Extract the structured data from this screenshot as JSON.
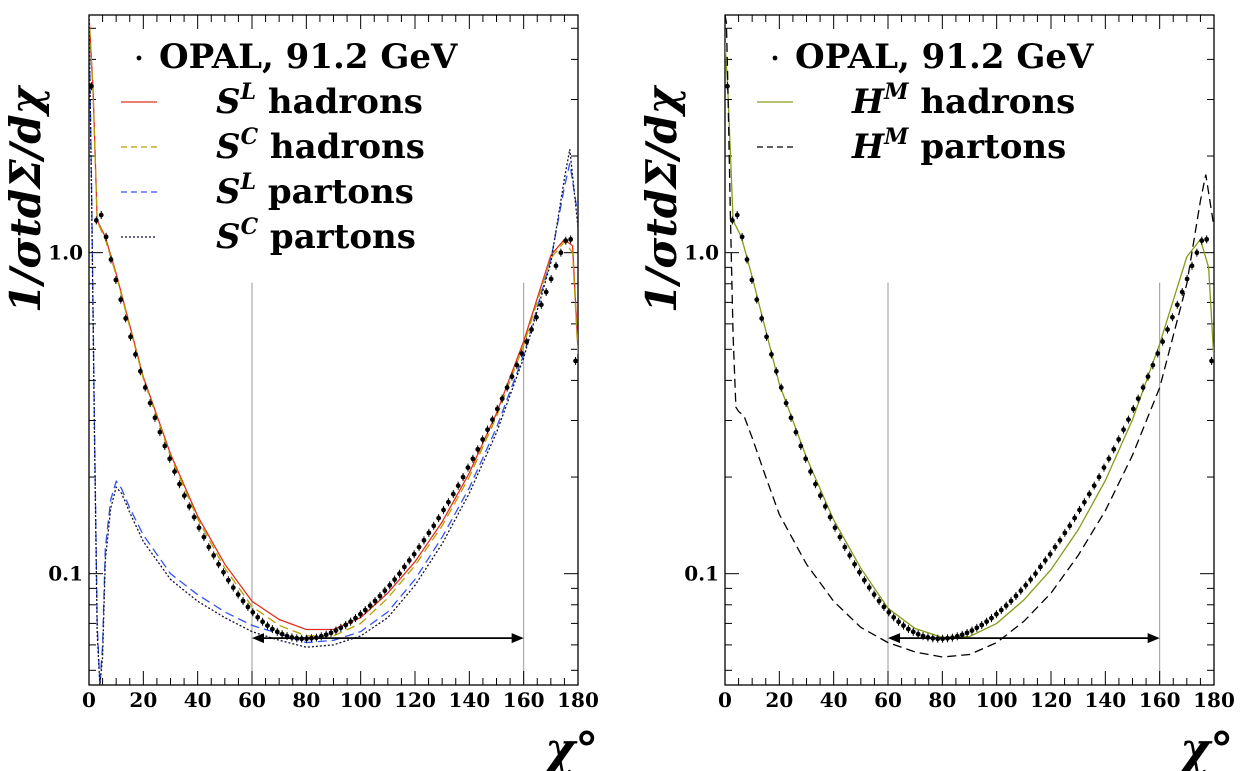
{
  "chart_data": [
    {
      "type": "line",
      "panel": "left",
      "xlabel": "χ°",
      "ylabel": "1/σtdΣ/dχ",
      "xlim": [
        0,
        180
      ],
      "ylim": [
        0.045,
        5.5
      ],
      "yscale": "log",
      "x_ticks": [
        0,
        20,
        40,
        60,
        80,
        100,
        120,
        140,
        160,
        180
      ],
      "y_tick_labels": [
        {
          "value": 0.1,
          "label": "0.1"
        },
        {
          "value": 1.0,
          "label": "1.0"
        }
      ],
      "vertical_lines": [
        60,
        160
      ],
      "fit_range_arrow": [
        60,
        160
      ],
      "arrow_y": 0.063,
      "legend_placement": "top",
      "legend": [
        {
          "label": "OPAL, 91.2 GeV",
          "style": "points",
          "color": "#000000"
        },
        {
          "label": "S",
          "sup": "L",
          "rest": " hadrons",
          "style": "solid",
          "color": "#e0301e"
        },
        {
          "label": "S",
          "sup": "C",
          "rest": " hadrons",
          "style": "dashed",
          "color": "#b8a000"
        },
        {
          "label": "S",
          "sup": "L",
          "rest": " partons",
          "style": "dashed",
          "color": "#3355ee"
        },
        {
          "label": "S",
          "sup": "C",
          "rest": " partons",
          "style": "dotted",
          "color": "#111133"
        }
      ],
      "data_series": {
        "name": "OPAL, 91.2 GeV",
        "x": [
          0.9,
          2.7,
          4.5,
          6.3,
          8.1,
          9.9,
          11.7,
          13.5,
          15.3,
          17.1,
          18.9,
          20.7,
          22.5,
          24.3,
          26.1,
          27.9,
          29.7,
          31.5,
          33.3,
          35.1,
          36.9,
          38.7,
          40.5,
          42.3,
          44.1,
          45.9,
          47.7,
          49.5,
          51.3,
          53.1,
          54.9,
          56.7,
          58.5,
          60.3,
          62.1,
          63.9,
          65.7,
          67.5,
          69.3,
          71.1,
          72.9,
          74.7,
          76.5,
          78.3,
          80.1,
          81.9,
          83.7,
          85.5,
          87.3,
          89.1,
          90.9,
          92.7,
          94.5,
          96.3,
          98.1,
          99.9,
          101.7,
          103.5,
          105.3,
          107.1,
          108.9,
          110.7,
          112.5,
          114.3,
          116.1,
          117.9,
          119.7,
          121.5,
          123.3,
          125.1,
          126.9,
          128.7,
          130.5,
          132.3,
          134.1,
          135.9,
          137.7,
          139.5,
          141.3,
          143.1,
          144.9,
          146.7,
          148.5,
          150.3,
          152.1,
          153.9,
          155.7,
          157.5,
          159.3,
          161.1,
          162.9,
          164.7,
          166.5,
          168.3,
          170.1,
          171.9,
          173.7,
          175.5,
          177.3,
          179.1
        ],
        "y": [
          3.3,
          1.26,
          1.31,
          1.12,
          0.952,
          0.822,
          0.714,
          0.624,
          0.547,
          0.482,
          0.427,
          0.38,
          0.34,
          0.306,
          0.276,
          0.25,
          0.228,
          0.208,
          0.19,
          0.175,
          0.162,
          0.15,
          0.139,
          0.13,
          0.121,
          0.114,
          0.107,
          0.101,
          0.0954,
          0.0905,
          0.0861,
          0.0822,
          0.0788,
          0.0758,
          0.0731,
          0.0708,
          0.0689,
          0.0672,
          0.0659,
          0.0648,
          0.0639,
          0.0633,
          0.0629,
          0.0627,
          0.0627,
          0.0629,
          0.0632,
          0.0638,
          0.0645,
          0.0654,
          0.0665,
          0.0678,
          0.0692,
          0.0709,
          0.0727,
          0.0748,
          0.077,
          0.0795,
          0.0822,
          0.0852,
          0.0885,
          0.092,
          0.0959,
          0.1,
          0.105,
          0.11,
          0.115,
          0.121,
          0.127,
          0.134,
          0.141,
          0.149,
          0.158,
          0.167,
          0.177,
          0.188,
          0.2,
          0.214,
          0.228,
          0.244,
          0.262,
          0.281,
          0.302,
          0.326,
          0.351,
          0.38,
          0.411,
          0.446,
          0.485,
          0.528,
          0.576,
          0.629,
          0.688,
          0.754,
          0.828,
          0.91,
          1.0,
          1.09,
          1.1,
          0.46
        ]
      },
      "curves": [
        {
          "name": "S^L hadrons",
          "x": [
            0,
            1.5,
            3,
            6,
            10,
            20,
            30,
            40,
            50,
            60,
            70,
            80,
            90,
            100,
            110,
            120,
            130,
            140,
            150,
            160,
            170,
            175,
            178,
            180
          ],
          "y": [
            5.5,
            3.2,
            1.26,
            1.12,
            0.86,
            0.41,
            0.236,
            0.151,
            0.107,
            0.082,
            0.072,
            0.067,
            0.067,
            0.073,
            0.087,
            0.109,
            0.145,
            0.206,
            0.316,
            0.53,
            0.98,
            1.1,
            1.05,
            0.5
          ]
        },
        {
          "name": "S^C hadrons",
          "x": [
            0,
            1.5,
            3,
            6,
            10,
            20,
            30,
            40,
            50,
            60,
            70,
            80,
            90,
            100,
            110,
            120,
            130,
            140,
            150,
            160,
            170,
            175,
            178,
            180
          ],
          "y": [
            5.5,
            3.1,
            1.25,
            1.1,
            0.85,
            0.405,
            0.232,
            0.148,
            0.104,
            0.079,
            0.069,
            0.064,
            0.064,
            0.07,
            0.084,
            0.106,
            0.141,
            0.2,
            0.308,
            0.515,
            0.96,
            1.08,
            1.0,
            0.48
          ]
        },
        {
          "name": "S^L partons",
          "x": [
            0,
            1,
            2,
            3,
            4,
            5,
            6,
            8,
            10,
            12,
            15,
            20,
            30,
            40,
            50,
            60,
            70,
            80,
            90,
            100,
            110,
            120,
            130,
            140,
            150,
            160,
            170,
            175,
            177,
            180
          ],
          "y": [
            5.5,
            1.5,
            0.3,
            0.07,
            0.045,
            0.06,
            0.12,
            0.17,
            0.194,
            0.184,
            0.16,
            0.132,
            0.1,
            0.086,
            0.076,
            0.069,
            0.065,
            0.061,
            0.062,
            0.066,
            0.076,
            0.096,
            0.13,
            0.185,
            0.285,
            0.48,
            0.95,
            1.6,
            1.9,
            1.3
          ]
        },
        {
          "name": "S^C partons",
          "x": [
            0,
            1,
            2,
            3,
            4,
            5,
            6,
            8,
            10,
            12,
            15,
            20,
            30,
            40,
            50,
            60,
            70,
            80,
            90,
            100,
            110,
            120,
            130,
            140,
            150,
            160,
            170,
            175,
            177,
            180
          ],
          "y": [
            5.5,
            1.4,
            0.28,
            0.065,
            0.045,
            0.055,
            0.11,
            0.16,
            0.186,
            0.178,
            0.155,
            0.126,
            0.096,
            0.082,
            0.073,
            0.066,
            0.062,
            0.059,
            0.06,
            0.064,
            0.073,
            0.092,
            0.124,
            0.178,
            0.275,
            0.47,
            0.93,
            1.7,
            2.1,
            1.2
          ]
        }
      ]
    },
    {
      "type": "line",
      "panel": "right",
      "xlabel": "χ°",
      "ylabel": "1/σtdΣ/dχ",
      "xlim": [
        0,
        180
      ],
      "ylim": [
        0.045,
        5.5
      ],
      "yscale": "log",
      "x_ticks": [
        0,
        20,
        40,
        60,
        80,
        100,
        120,
        140,
        160,
        180
      ],
      "y_tick_labels": [
        {
          "value": 0.1,
          "label": "0.1"
        },
        {
          "value": 1.0,
          "label": "1.0"
        }
      ],
      "vertical_lines": [
        60,
        160
      ],
      "fit_range_arrow": [
        60,
        160
      ],
      "arrow_y": 0.063,
      "legend_placement": "top",
      "legend": [
        {
          "label": "OPAL, 91.2 GeV",
          "style": "points",
          "color": "#000000"
        },
        {
          "label": "H",
          "sup": "M",
          "rest": " hadrons",
          "style": "solid",
          "color": "#8a9a1a"
        },
        {
          "label": "H",
          "sup": "M",
          "rest": " partons",
          "style": "dashed",
          "color": "#000000"
        }
      ],
      "data_series": {
        "name": "OPAL, 91.2 GeV",
        "x": [
          0.9,
          2.7,
          4.5,
          6.3,
          8.1,
          9.9,
          11.7,
          13.5,
          15.3,
          17.1,
          18.9,
          20.7,
          22.5,
          24.3,
          26.1,
          27.9,
          29.7,
          31.5,
          33.3,
          35.1,
          36.9,
          38.7,
          40.5,
          42.3,
          44.1,
          45.9,
          47.7,
          49.5,
          51.3,
          53.1,
          54.9,
          56.7,
          58.5,
          60.3,
          62.1,
          63.9,
          65.7,
          67.5,
          69.3,
          71.1,
          72.9,
          74.7,
          76.5,
          78.3,
          80.1,
          81.9,
          83.7,
          85.5,
          87.3,
          89.1,
          90.9,
          92.7,
          94.5,
          96.3,
          98.1,
          99.9,
          101.7,
          103.5,
          105.3,
          107.1,
          108.9,
          110.7,
          112.5,
          114.3,
          116.1,
          117.9,
          119.7,
          121.5,
          123.3,
          125.1,
          126.9,
          128.7,
          130.5,
          132.3,
          134.1,
          135.9,
          137.7,
          139.5,
          141.3,
          143.1,
          144.9,
          146.7,
          148.5,
          150.3,
          152.1,
          153.9,
          155.7,
          157.5,
          159.3,
          161.1,
          162.9,
          164.7,
          166.5,
          168.3,
          170.1,
          171.9,
          173.7,
          175.5,
          177.3,
          179.1
        ],
        "y": [
          3.3,
          1.26,
          1.31,
          1.12,
          0.952,
          0.822,
          0.714,
          0.624,
          0.547,
          0.482,
          0.427,
          0.38,
          0.34,
          0.306,
          0.276,
          0.25,
          0.228,
          0.208,
          0.19,
          0.175,
          0.162,
          0.15,
          0.139,
          0.13,
          0.121,
          0.114,
          0.107,
          0.101,
          0.0954,
          0.0905,
          0.0861,
          0.0822,
          0.0788,
          0.0758,
          0.0731,
          0.0708,
          0.0689,
          0.0672,
          0.0659,
          0.0648,
          0.0639,
          0.0633,
          0.0629,
          0.0627,
          0.0627,
          0.0629,
          0.0632,
          0.0638,
          0.0645,
          0.0654,
          0.0665,
          0.0678,
          0.0692,
          0.0709,
          0.0727,
          0.0748,
          0.077,
          0.0795,
          0.0822,
          0.0852,
          0.0885,
          0.092,
          0.0959,
          0.1,
          0.105,
          0.11,
          0.115,
          0.121,
          0.127,
          0.134,
          0.141,
          0.149,
          0.158,
          0.167,
          0.177,
          0.188,
          0.2,
          0.214,
          0.228,
          0.244,
          0.262,
          0.281,
          0.302,
          0.326,
          0.351,
          0.38,
          0.411,
          0.446,
          0.485,
          0.528,
          0.576,
          0.629,
          0.688,
          0.754,
          0.828,
          0.91,
          1.0,
          1.09,
          1.1,
          0.46
        ]
      },
      "curves": [
        {
          "name": "H^M hadrons",
          "x": [
            0,
            1,
            3,
            6,
            10,
            20,
            30,
            40,
            50,
            60,
            70,
            80,
            90,
            100,
            110,
            120,
            130,
            140,
            150,
            160,
            170,
            175,
            178,
            180
          ],
          "y": [
            4.5,
            3.3,
            1.26,
            1.12,
            0.84,
            0.39,
            0.23,
            0.147,
            0.104,
            0.078,
            0.0675,
            0.0633,
            0.0637,
            0.07,
            0.0828,
            0.103,
            0.137,
            0.195,
            0.302,
            0.52,
            0.97,
            1.1,
            0.9,
            0.46
          ]
        },
        {
          "name": "H^M partons",
          "x": [
            0,
            0.5,
            1,
            2,
            3,
            4,
            5,
            7,
            10,
            15,
            20,
            30,
            40,
            50,
            60,
            70,
            80,
            90,
            100,
            110,
            120,
            130,
            140,
            150,
            160,
            170,
            175,
            177,
            180
          ],
          "y": [
            5.5,
            5.2,
            3.5,
            1.3,
            0.55,
            0.33,
            0.32,
            0.31,
            0.265,
            0.2,
            0.153,
            0.107,
            0.082,
            0.068,
            0.061,
            0.057,
            0.055,
            0.056,
            0.061,
            0.071,
            0.087,
            0.114,
            0.157,
            0.234,
            0.38,
            0.8,
            1.45,
            1.75,
            1.2
          ]
        }
      ]
    }
  ]
}
